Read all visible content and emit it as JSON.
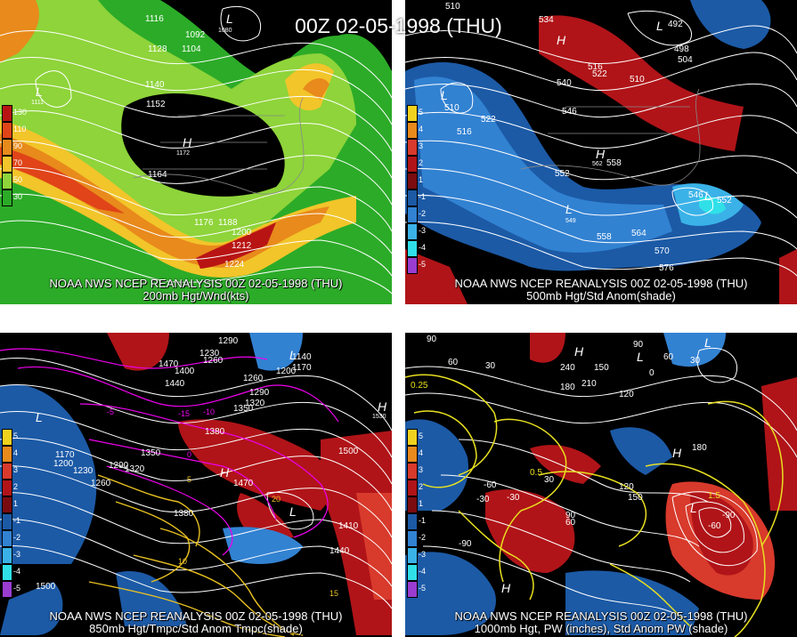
{
  "title": "00Z 02-05-1998 (THU)",
  "panels": [
    {
      "caption_top": "NOAA NWS NCEP REANALYSIS 00Z 02-05-1998 (THU)",
      "caption_bottom": "200mb Hgt/Wnd(kts)",
      "legend": [
        {
          "label": "130",
          "color": "#b81414"
        },
        {
          "label": "110",
          "color": "#e04418"
        },
        {
          "label": "90",
          "color": "#e88a1c"
        },
        {
          "label": "70",
          "color": "#f2c52a"
        },
        {
          "label": "50",
          "color": "#8ed43a"
        },
        {
          "label": "30",
          "color": "#2cab28"
        }
      ],
      "labels": [
        "1116",
        "1092",
        "1080",
        "1128",
        "1104",
        "1140",
        "1152",
        "1164",
        "1172",
        "1176",
        "1188",
        "1200",
        "1212",
        "1224",
        "1111",
        "L",
        "H",
        "L"
      ]
    },
    {
      "caption_top": "NOAA NWS NCEP REANALYSIS 00Z 02-05-1998 (THU)",
      "caption_bottom": "500mb Hgt/Std Anom(shade)",
      "legend": [
        {
          "label": "5",
          "color": "#f0d21e"
        },
        {
          "label": "4",
          "color": "#e88a1c"
        },
        {
          "label": "3",
          "color": "#d83a2c"
        },
        {
          "label": "2",
          "color": "#b01418"
        },
        {
          "label": "1",
          "color": "#7a0c10"
        },
        {
          "label": "-1",
          "color": "#1c5aa6"
        },
        {
          "label": "-2",
          "color": "#3282d2"
        },
        {
          "label": "-3",
          "color": "#3ab2e8"
        },
        {
          "label": "-4",
          "color": "#30e0e8"
        },
        {
          "label": "-5",
          "color": "#9a3cd0"
        }
      ],
      "labels": [
        "510",
        "534",
        "492",
        "498",
        "504",
        "516",
        "522",
        "510",
        "540",
        "546",
        "510",
        "516",
        "522",
        "552",
        "558",
        "562",
        "546",
        "552",
        "549",
        "558",
        "564",
        "570",
        "576",
        "L",
        "H",
        "L",
        "H",
        "L",
        "L"
      ]
    },
    {
      "caption_top": "NOAA NWS NCEP REANALYSIS 00Z 02-05-1998 (THU)",
      "caption_bottom": "850mb Hgt/Tmpc/Std Anom Tmpc(shade)",
      "legend": [
        {
          "label": "5",
          "color": "#f0d21e"
        },
        {
          "label": "4",
          "color": "#e88a1c"
        },
        {
          "label": "3",
          "color": "#d83a2c"
        },
        {
          "label": "2",
          "color": "#b01418"
        },
        {
          "label": "1",
          "color": "#7a0c10"
        },
        {
          "label": "-1",
          "color": "#1c5aa6"
        },
        {
          "label": "-2",
          "color": "#3282d2"
        },
        {
          "label": "-3",
          "color": "#3ab2e8"
        },
        {
          "label": "-4",
          "color": "#30e0e8"
        },
        {
          "label": "-5",
          "color": "#9a3cd0"
        }
      ],
      "labels": [
        "1290",
        "1260",
        "1470",
        "1400",
        "1230",
        "1440",
        "1200",
        "1170",
        "1140",
        "1260",
        "1290",
        "1320",
        "1350",
        "1380",
        "1170",
        "1200",
        "1230",
        "1260",
        "1350",
        "1320",
        "1290",
        "1470",
        "1500",
        "1530",
        "1380",
        "1410",
        "1440",
        "1500",
        "-10",
        "-15",
        "-5",
        "0",
        "5",
        "10",
        "15",
        "20",
        "L",
        "H",
        "L",
        "H",
        "L"
      ]
    },
    {
      "caption_top": "NOAA NWS NCEP REANALYSIS 00Z 02-05-1998 (THU)",
      "caption_bottom": "1000mb Hgt, PW (inches), Std Anom PW (shade)",
      "legend": [
        {
          "label": "5",
          "color": "#f0d21e"
        },
        {
          "label": "4",
          "color": "#e88a1c"
        },
        {
          "label": "3",
          "color": "#d83a2c"
        },
        {
          "label": "2",
          "color": "#b01418"
        },
        {
          "label": "1",
          "color": "#7a0c10"
        },
        {
          "label": "-1",
          "color": "#1c5aa6"
        },
        {
          "label": "-2",
          "color": "#3282d2"
        },
        {
          "label": "-3",
          "color": "#3ab2e8"
        },
        {
          "label": "-4",
          "color": "#30e0e8"
        },
        {
          "label": "-5",
          "color": "#9a3cd0"
        }
      ],
      "labels": [
        "90",
        "60",
        "30",
        "0.25",
        "240",
        "210",
        "180",
        "150",
        "120",
        "90",
        "60",
        "30",
        "0",
        "-30",
        "-60",
        "-90",
        "0.5",
        "1.5",
        "180",
        "150",
        "120",
        "90",
        "60",
        "30",
        "-30",
        "-60",
        "-90",
        "H",
        "L",
        "L",
        "H",
        "L",
        "H"
      ]
    }
  ]
}
